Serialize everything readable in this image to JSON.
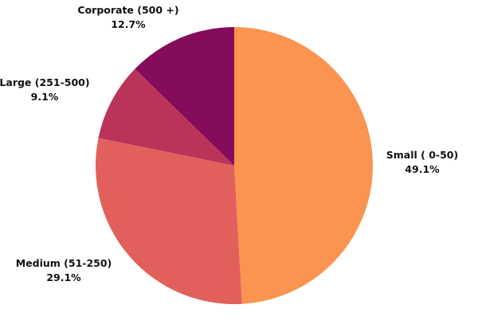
{
  "chart_data": {
    "type": "pie",
    "title": "",
    "start_angle_deg": 0,
    "direction": "clockwise",
    "slices": [
      {
        "label": "Small ( 0-50)",
        "value": 49.1,
        "value_label": "49.1%",
        "color": "#FB9450"
      },
      {
        "label": "Medium (51-250)",
        "value": 29.1,
        "value_label": "29.1%",
        "color": "#E2605B"
      },
      {
        "label": "Large (251-500)",
        "value": 9.1,
        "value_label": "9.1%",
        "color": "#BA3359"
      },
      {
        "label": "Corporate (500 +)",
        "value": 12.7,
        "value_label": "12.7%",
        "color": "#850C5A"
      }
    ]
  }
}
